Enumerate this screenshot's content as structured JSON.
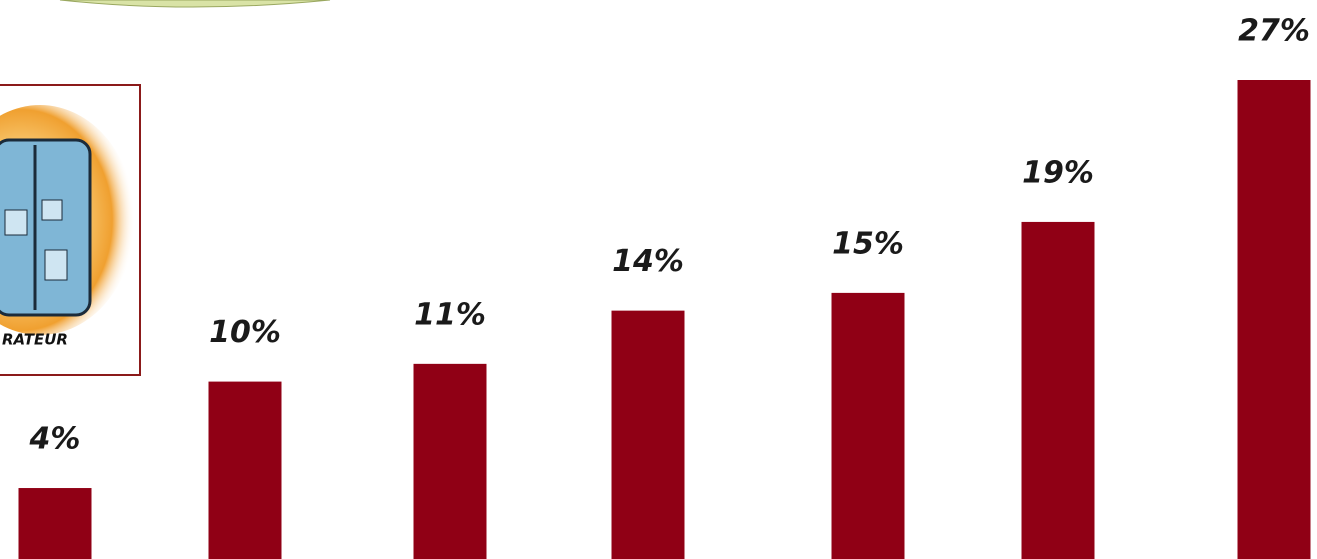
{
  "chart_data": {
    "type": "bar",
    "values": [
      4,
      10,
      11,
      14,
      15,
      19,
      27
    ],
    "value_labels": [
      "4%",
      "10%",
      "11%",
      "14%",
      "15%",
      "19%",
      "27%"
    ],
    "color": "#900015",
    "annotation": "RATEUR"
  }
}
